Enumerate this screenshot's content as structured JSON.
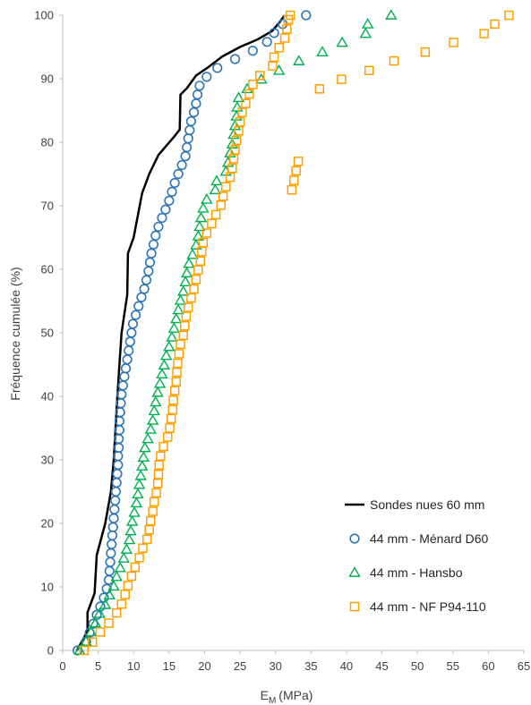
{
  "chart_data": {
    "type": "scatter",
    "xlabel": "E",
    "xlabel_sub": "M",
    "xlabel_unit": "(MPa)",
    "ylabel": "Fréquence cumulée (%)",
    "xlim": [
      0,
      65
    ],
    "ylim": [
      0,
      100
    ],
    "xticks": [
      "0",
      "5",
      "10",
      "15",
      "20",
      "25",
      "30",
      "35",
      "40",
      "45",
      "50",
      "55",
      "60",
      "65"
    ],
    "yticks": [
      "0",
      "10",
      "20",
      "30",
      "40",
      "50",
      "60",
      "70",
      "80",
      "90",
      "100"
    ],
    "grid": false,
    "legend_position": "bottom-right",
    "series": [
      {
        "name": "Sondes nues 60 mm",
        "style": "line",
        "color": "#000000",
        "x": [
          2.0,
          3.5,
          3.5,
          4.5,
          4.8,
          6.0,
          6.8,
          7.2,
          7.6,
          8.0,
          8.3,
          9.1,
          9.2,
          10.0,
          11.2,
          12.2,
          13.5,
          15.8,
          16.5,
          16.6,
          17.5,
          18.8,
          20.5,
          22.5,
          25.0,
          27.5,
          29.5,
          30.5,
          31.3
        ],
        "y": [
          0,
          3,
          6,
          9,
          15,
          20,
          25,
          30,
          38,
          45,
          50,
          56,
          62.5,
          65,
          72,
          75,
          78,
          81,
          82,
          87.5,
          88.5,
          90.5,
          91.8,
          93.5,
          95,
          96.2,
          97.5,
          98.8,
          100
        ]
      },
      {
        "name": "44 mm - Ménard D60",
        "style": "circle",
        "color": "#2E75B6",
        "x": [
          2.1,
          3.3,
          3.8,
          4.3,
          4.8,
          5.3,
          5.8,
          6.2,
          6.5,
          6.6,
          6.7,
          6.8,
          6.9,
          7.0,
          7.1,
          7.2,
          7.3,
          7.4,
          7.5,
          7.6,
          7.7,
          7.8,
          7.8,
          7.9,
          7.9,
          8.0,
          8.0,
          8.1,
          8.2,
          8.3,
          8.5,
          8.7,
          8.9,
          9.1,
          9.3,
          9.5,
          9.7,
          9.9,
          10.3,
          10.7,
          11.1,
          11.5,
          11.8,
          12.1,
          12.3,
          12.5,
          12.8,
          13.1,
          13.5,
          14.0,
          14.5,
          15.0,
          15.4,
          15.8,
          16.3,
          16.8,
          17.3,
          17.5,
          17.7,
          17.9,
          18.1,
          18.5,
          18.8,
          19.0,
          19.3,
          20.3,
          21.8,
          24.3,
          26.8,
          28.8,
          29.8,
          31.0,
          34.3
        ],
        "y": [
          0,
          1.4,
          2.8,
          4.2,
          5.6,
          6.9,
          8.3,
          9.7,
          11.1,
          12.5,
          13.9,
          15.3,
          16.7,
          18.1,
          19.4,
          20.8,
          22.2,
          23.6,
          25.0,
          26.4,
          27.8,
          29.2,
          30.6,
          31.9,
          33.3,
          34.7,
          36.1,
          37.5,
          38.9,
          40.3,
          41.7,
          43.1,
          44.4,
          45.8,
          47.2,
          48.6,
          50.0,
          51.4,
          52.8,
          54.2,
          55.6,
          56.9,
          58.3,
          59.7,
          61.1,
          62.5,
          63.9,
          65.3,
          66.7,
          68.1,
          69.4,
          70.8,
          72.2,
          73.6,
          75.0,
          76.4,
          77.8,
          79.2,
          80.6,
          81.9,
          83.3,
          84.7,
          86.1,
          87.5,
          88.9,
          90.3,
          91.7,
          93.1,
          94.4,
          95.8,
          97.2,
          98.6,
          100
        ]
      },
      {
        "name": "44 mm - Hansbo",
        "style": "triangle",
        "color": "#00B050",
        "x": [
          2.4,
          3.3,
          4.0,
          4.6,
          5.2,
          6.0,
          6.6,
          7.2,
          7.6,
          8.1,
          8.6,
          9.0,
          9.4,
          9.6,
          9.8,
          10.1,
          10.4,
          10.6,
          10.8,
          11.0,
          11.2,
          11.4,
          11.6,
          12.0,
          12.4,
          12.7,
          12.9,
          13.1,
          13.4,
          13.7,
          14.0,
          14.3,
          14.6,
          15.0,
          15.4,
          15.7,
          16.0,
          16.3,
          16.6,
          17.0,
          17.3,
          17.5,
          17.8,
          18.3,
          18.8,
          19.1,
          19.3,
          19.5,
          19.8,
          20.3,
          21.5,
          21.7,
          23.0,
          23.3,
          23.6,
          23.9,
          24.1,
          24.3,
          24.5,
          24.6,
          24.8,
          26.0,
          28.0,
          30.5,
          33.3,
          36.6,
          39.4,
          42.7,
          43.0,
          46.3
        ],
        "y": [
          0,
          1.4,
          2.9,
          4.3,
          5.8,
          7.2,
          8.7,
          10.1,
          11.6,
          13.0,
          14.5,
          15.9,
          17.4,
          18.8,
          20.3,
          21.7,
          23.2,
          24.6,
          26.1,
          27.5,
          29.0,
          30.4,
          31.9,
          33.3,
          34.8,
          36.2,
          37.7,
          39.1,
          40.6,
          42.0,
          43.5,
          44.9,
          46.4,
          47.8,
          49.3,
          50.7,
          52.2,
          53.6,
          55.1,
          56.5,
          58.0,
          59.4,
          60.9,
          62.3,
          63.8,
          65.2,
          66.7,
          68.1,
          69.6,
          71.0,
          72.5,
          73.9,
          75.4,
          76.8,
          78.3,
          79.7,
          81.2,
          82.6,
          84.1,
          85.5,
          87.0,
          88.4,
          89.9,
          91.3,
          92.8,
          94.2,
          95.7,
          97.1,
          98.6,
          100
        ]
      },
      {
        "name": "44 mm - NF P94-110",
        "style": "square",
        "color": "#FFA000",
        "x": [
          3.0,
          4.2,
          5.3,
          6.5,
          7.6,
          8.3,
          8.8,
          9.2,
          9.7,
          10.2,
          10.8,
          11.3,
          11.9,
          12.2,
          12.4,
          12.7,
          12.9,
          13.2,
          13.4,
          13.5,
          13.6,
          13.8,
          14.2,
          14.8,
          15.1,
          15.3,
          15.5,
          15.6,
          15.8,
          16.0,
          16.1,
          16.2,
          16.4,
          16.6,
          17.0,
          17.2,
          17.4,
          17.7,
          18.1,
          18.5,
          18.8,
          19.1,
          19.4,
          19.6,
          19.8,
          20.3,
          21.0,
          21.6,
          22.3,
          22.6,
          23.0,
          23.6,
          23.9,
          24.1,
          24.3,
          24.5,
          24.8,
          25.0,
          25.3,
          25.8,
          26.3,
          26.8,
          27.8,
          29.6,
          29.8,
          30.5,
          31.3,
          31.6,
          31.8,
          32.1,
          32.3,
          32.6,
          32.9,
          33.2,
          36.2,
          39.3,
          43.2,
          46.7,
          51.1,
          55.1,
          59.4,
          60.9,
          62.9
        ],
        "y": [
          0,
          1.3,
          2.9,
          4.3,
          5.9,
          7.3,
          8.8,
          10.2,
          11.7,
          13.1,
          14.6,
          16.1,
          17.5,
          19.0,
          20.4,
          21.9,
          23.4,
          24.8,
          26.3,
          27.7,
          29.2,
          30.6,
          32.1,
          33.6,
          35.0,
          36.5,
          37.9,
          39.4,
          40.9,
          42.3,
          43.8,
          45.2,
          46.7,
          48.2,
          49.6,
          51.1,
          52.6,
          54.0,
          55.5,
          56.9,
          58.4,
          59.9,
          61.3,
          62.8,
          64.2,
          65.7,
          67.2,
          68.6,
          70.1,
          71.5,
          73.0,
          74.5,
          75.9,
          77.4,
          78.8,
          80.3,
          81.8,
          83.2,
          84.7,
          86.1,
          87.6,
          89.1,
          90.5,
          92.0,
          93.4,
          94.9,
          96.4,
          97.8,
          99.3,
          100,
          72.5,
          74.0,
          75.5,
          77.0,
          88.4,
          89.9,
          91.3,
          92.8,
          94.2,
          95.7,
          97.1,
          98.6,
          100
        ]
      }
    ]
  }
}
